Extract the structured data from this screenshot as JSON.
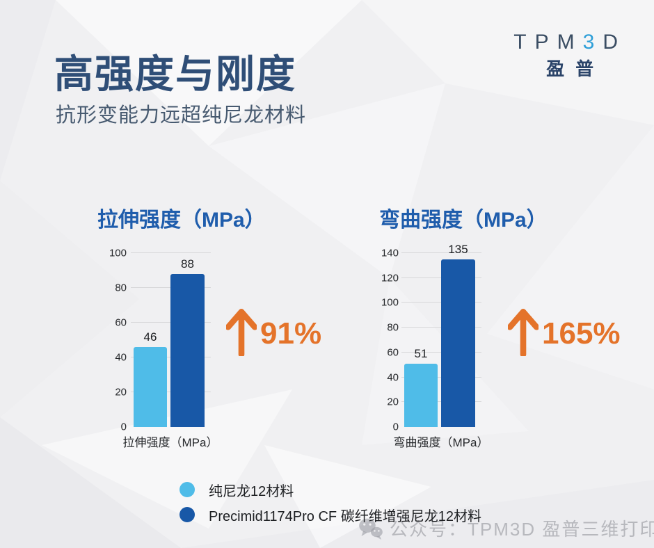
{
  "slide": {
    "title": "高强度与刚度",
    "subtitle": "抗形变能力远超纯尼龙材料"
  },
  "logo": {
    "letters": [
      "T",
      "P",
      "M",
      "3",
      "D"
    ],
    "subbrand": "盈普",
    "dark_color": "#3a4d63",
    "accent_color": "#2e9fd8"
  },
  "legend": {
    "items": [
      {
        "label": "纯尼龙12材料",
        "color": "#4fbce8"
      },
      {
        "label": "Precimid1174Pro CF 碳纤维增强尼龙12材料",
        "color": "#1858a7"
      }
    ]
  },
  "watermark": {
    "icon": "wechat-icon",
    "text": "公众号：TPM3D 盈普三维打印"
  },
  "colors": {
    "title_navy": "#2f4e77",
    "subtitle_gray": "#475a70",
    "chart_title_blue": "#1f5dac",
    "bar_light_blue": "#4fbce8",
    "bar_dark_blue": "#1858a7",
    "accent_orange": "#e4732a",
    "gridline": "#d7d7d9",
    "background": "#f0f0f2"
  },
  "chart_data": [
    {
      "type": "bar",
      "title": "拉伸强度（MPa）",
      "categories": [
        "拉伸强度（MPa）"
      ],
      "series": [
        {
          "name": "纯尼龙12材料",
          "color": "#4fbce8",
          "values": [
            46
          ]
        },
        {
          "name": "Precimid1174Pro CF 碳纤维增强尼龙12材料",
          "color": "#1858a7",
          "values": [
            88
          ]
        }
      ],
      "ylim": [
        0,
        100
      ],
      "yticks": [
        0,
        20,
        40,
        60,
        80,
        100
      ],
      "grid": true,
      "legend_position": "bottom-shared",
      "annotation": "91%",
      "annotation_icon": "up-arrow-icon"
    },
    {
      "type": "bar",
      "title": "弯曲强度（MPa）",
      "categories": [
        "弯曲强度（MPa）"
      ],
      "series": [
        {
          "name": "纯尼龙12材料",
          "color": "#4fbce8",
          "values": [
            51
          ]
        },
        {
          "name": "Precimid1174Pro CF 碳纤维增强尼龙12材料",
          "color": "#1858a7",
          "values": [
            135
          ]
        }
      ],
      "ylim": [
        0,
        140
      ],
      "yticks": [
        0,
        20,
        40,
        60,
        80,
        100,
        120,
        140
      ],
      "grid": true,
      "legend_position": "bottom-shared",
      "annotation": "165%",
      "annotation_icon": "up-arrow-icon"
    }
  ]
}
